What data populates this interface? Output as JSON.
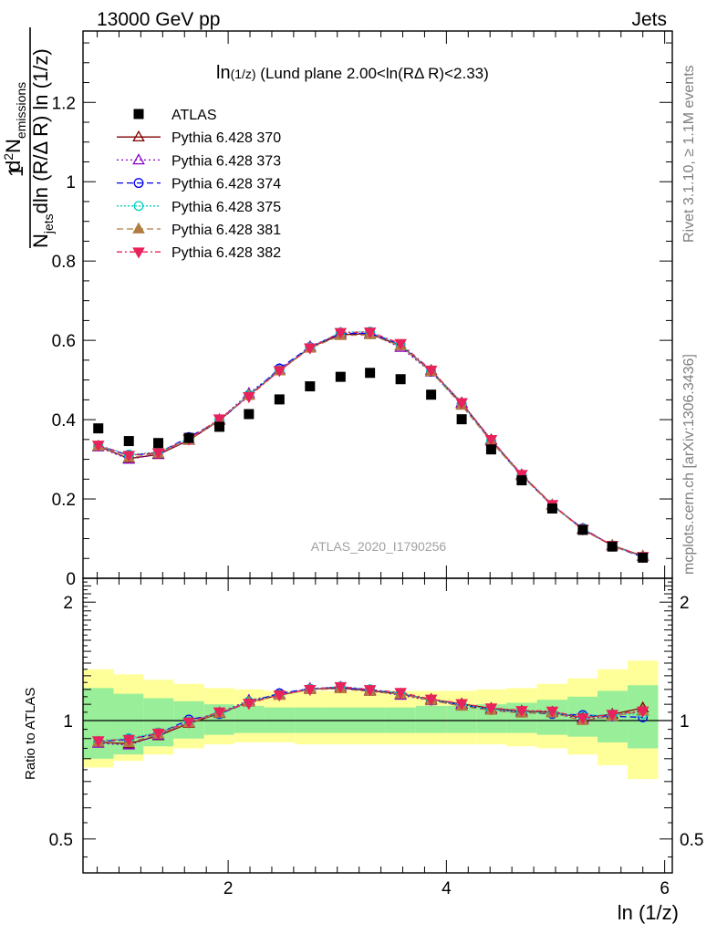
{
  "header": {
    "left_text": "13000 GeV pp",
    "right_text": "Jets"
  },
  "side_labels": {
    "rivet": "Rivet 3.1.10, ≥ 1.1M events",
    "mcplots": "mcplots.cern.ch [arXiv:1306.3436]"
  },
  "watermark": "ATLAS_2020_I1790256",
  "chart_data": {
    "type": "scatter",
    "title_main": "ln",
    "title_sub": "(1/z)",
    "title_rest": " (Lund plane 2.00<ln(RΔ R)<2.33)",
    "xlabel": "ln (1/z)",
    "ylabel_main": {
      "one": "1",
      "d2N": "d",
      "d2N_exp": "2",
      "N": "N",
      "emissions": "emissions",
      "Njets": "N",
      "jets": "jets",
      "dln": "dln (R/Δ R) ln (1/z)"
    },
    "ylabel_ratio": "Ratio to ATLAS",
    "xlim": [
      0.67,
      6.07
    ],
    "ylim_main": [
      0,
      1.38
    ],
    "ylim_ratio": [
      0.41,
      2.3
    ],
    "x_ticks": [
      "2",
      "4",
      "6"
    ],
    "y_ticks_main": [
      "0",
      "0.2",
      "0.4",
      "0.6",
      "0.8",
      "1",
      "1.2"
    ],
    "y_ticks_ratio": [
      "0.5",
      "1",
      "2"
    ],
    "x": [
      0.81,
      1.09,
      1.36,
      1.64,
      1.92,
      2.19,
      2.47,
      2.75,
      3.03,
      3.3,
      3.58,
      3.86,
      4.14,
      4.41,
      4.69,
      4.97,
      5.25,
      5.52,
      5.8
    ],
    "atlas": [
      0.378,
      0.346,
      0.341,
      0.354,
      0.382,
      0.414,
      0.451,
      0.484,
      0.508,
      0.518,
      0.502,
      0.463,
      0.401,
      0.325,
      0.247,
      0.176,
      0.122,
      0.08,
      0.052
    ],
    "band_inner": [
      [
        0.8,
        1.21
      ],
      [
        0.82,
        1.17
      ],
      [
        0.86,
        1.14
      ],
      [
        0.9,
        1.12
      ],
      [
        0.92,
        1.1
      ],
      [
        0.93,
        1.09
      ],
      [
        0.93,
        1.08
      ],
      [
        0.93,
        1.08
      ],
      [
        0.93,
        1.08
      ],
      [
        0.93,
        1.08
      ],
      [
        0.93,
        1.08
      ],
      [
        0.93,
        1.09
      ],
      [
        0.93,
        1.09
      ],
      [
        0.93,
        1.1
      ],
      [
        0.93,
        1.11
      ],
      [
        0.92,
        1.13
      ],
      [
        0.91,
        1.15
      ],
      [
        0.88,
        1.19
      ],
      [
        0.85,
        1.23
      ]
    ],
    "band_outer": [
      [
        0.76,
        1.35
      ],
      [
        0.79,
        1.31
      ],
      [
        0.82,
        1.27
      ],
      [
        0.85,
        1.24
      ],
      [
        0.87,
        1.21
      ],
      [
        0.88,
        1.2
      ],
      [
        0.88,
        1.19
      ],
      [
        0.87,
        1.19
      ],
      [
        0.87,
        1.19
      ],
      [
        0.87,
        1.19
      ],
      [
        0.87,
        1.19
      ],
      [
        0.87,
        1.19
      ],
      [
        0.87,
        1.19
      ],
      [
        0.87,
        1.2
      ],
      [
        0.86,
        1.21
      ],
      [
        0.85,
        1.24
      ],
      [
        0.82,
        1.28
      ],
      [
        0.77,
        1.35
      ],
      [
        0.71,
        1.42
      ]
    ],
    "series": [
      {
        "name": "Pythia 6.428 370",
        "color": "#800000",
        "dash": "",
        "marker": "triangle-up-open",
        "values": [
          0.333,
          0.302,
          0.312,
          0.348,
          0.398,
          0.462,
          0.523,
          0.582,
          0.614,
          0.617,
          0.586,
          0.524,
          0.442,
          0.349,
          0.261,
          0.185,
          0.124,
          0.083,
          0.056
        ]
      },
      {
        "name": "Pythia 6.428 373",
        "color": "#8800cc",
        "dash": "2,3",
        "marker": "triangle-up-open",
        "values": [
          0.331,
          0.3,
          0.313,
          0.35,
          0.4,
          0.466,
          0.526,
          0.584,
          0.618,
          0.617,
          0.582,
          0.52,
          0.44,
          0.347,
          0.259,
          0.184,
          0.123,
          0.082,
          0.055
        ]
      },
      {
        "name": "Pythia 6.428 374",
        "color": "#0000ee",
        "dash": "7,4",
        "marker": "circle-open",
        "values": [
          0.334,
          0.31,
          0.316,
          0.356,
          0.397,
          0.461,
          0.529,
          0.583,
          0.617,
          0.618,
          0.589,
          0.521,
          0.44,
          0.346,
          0.259,
          0.183,
          0.126,
          0.082,
          0.053
        ]
      },
      {
        "name": "Pythia 6.428 375",
        "color": "#00ccbb",
        "dash": "2,2",
        "marker": "circle-open",
        "values": [
          0.335,
          0.312,
          0.318,
          0.352,
          0.399,
          0.463,
          0.525,
          0.582,
          0.62,
          0.622,
          0.589,
          0.523,
          0.441,
          0.347,
          0.26,
          0.184,
          0.125,
          0.083,
          0.054
        ]
      },
      {
        "name": "Pythia 6.428 381",
        "color": "#b07c40",
        "dash": "7,4",
        "marker": "triangle-up-filled",
        "values": [
          0.333,
          0.304,
          0.315,
          0.349,
          0.399,
          0.461,
          0.523,
          0.58,
          0.612,
          0.614,
          0.586,
          0.521,
          0.436,
          0.345,
          0.258,
          0.184,
          0.122,
          0.082,
          0.055
        ]
      },
      {
        "name": "Pythia 6.428 382",
        "color": "#e8225a",
        "dash": "6,3,2,3",
        "marker": "triangle-down-filled",
        "values": [
          0.336,
          0.31,
          0.317,
          0.351,
          0.402,
          0.458,
          0.524,
          0.581,
          0.62,
          0.621,
          0.592,
          0.525,
          0.443,
          0.35,
          0.262,
          0.186,
          0.124,
          0.083,
          0.055
        ]
      }
    ]
  }
}
